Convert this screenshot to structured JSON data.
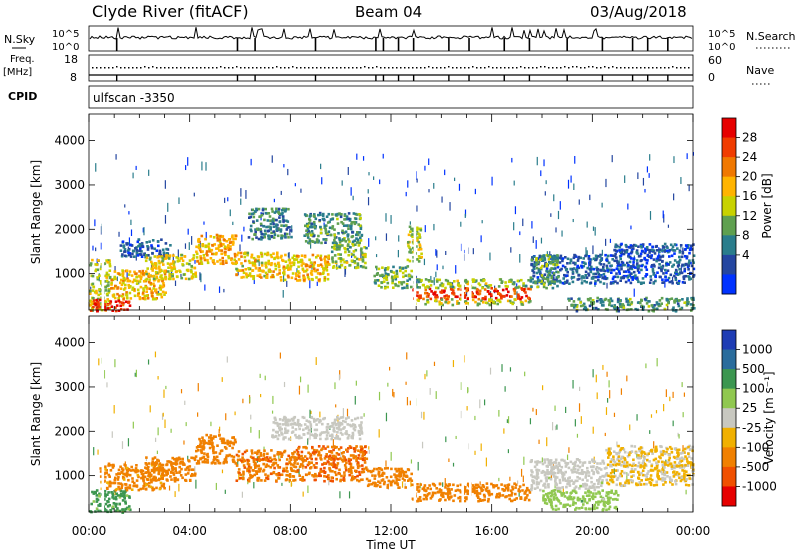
{
  "header": {
    "station": "Clyde River (fitACF)",
    "beam": "Beam 04",
    "date": "03/Aug/2018"
  },
  "summary_panels": {
    "noise_left_label": "N.Sky",
    "noise_right_label": "N.Search",
    "noise_ticks_left": [
      "10^5",
      "10^0"
    ],
    "noise_ticks_right": [
      "10^5",
      "10^0"
    ],
    "freq_label_top": "Freq.",
    "freq_label_unit": "[MHz]",
    "freq_ticks": [
      "18",
      "8"
    ],
    "nave_label": "Nave",
    "nave_ticks": [
      "60",
      "0"
    ],
    "cpid_label": "CPID",
    "cpid_value": "ulfscan  -3350"
  },
  "x_axis": {
    "title": "Time UT",
    "ticks": [
      "00:00",
      "04:00",
      "08:00",
      "12:00",
      "16:00",
      "20:00",
      "00:00"
    ]
  },
  "power_colorbar": {
    "label": "Power [dB]",
    "ticks": [
      "28",
      "24",
      "20",
      "16",
      "12",
      "8",
      "4"
    ],
    "colors": [
      "#e60000",
      "#f03c00",
      "#f07800",
      "#ffb400",
      "#c8d200",
      "#5fa050",
      "#2a7d8c",
      "#2446a0",
      "#0032ff"
    ]
  },
  "velocity_colorbar": {
    "label": "Velocity [m s⁻¹]",
    "ticks": [
      "1000",
      "500",
      "100",
      "25",
      "-25",
      "-100",
      "-500",
      "-1000"
    ],
    "colors": [
      "#1e3cb4",
      "#2a6c9c",
      "#3c9650",
      "#90c850",
      "#c8c8c0",
      "#f0b000",
      "#f08000",
      "#f05000",
      "#e60000"
    ]
  },
  "chart_data": [
    {
      "type": "heatmap",
      "title": "",
      "xlabel": "Time UT",
      "ylabel": "Slant Range [km]",
      "xlim": [
        0,
        24
      ],
      "ylim": [
        180,
        4600
      ],
      "yticks": [
        1000,
        2000,
        3000,
        4000
      ],
      "colorbar": {
        "label": "Power [dB]",
        "range": [
          0,
          30
        ],
        "ticks": [
          4,
          8,
          12,
          16,
          20,
          24,
          28
        ]
      },
      "blocks": [
        {
          "t0": 0.0,
          "t1": 0.8,
          "r0": 180,
          "r1": 1350,
          "value": 14
        },
        {
          "t0": 0.0,
          "t1": 1.6,
          "r0": 180,
          "r1": 450,
          "value": 27
        },
        {
          "t0": 0.8,
          "t1": 3.0,
          "r0": 450,
          "r1": 1100,
          "value": 18
        },
        {
          "t0": 1.2,
          "t1": 3.2,
          "r0": 1400,
          "r1": 1800,
          "value": 6
        },
        {
          "t0": 2.2,
          "t1": 4.2,
          "r0": 900,
          "r1": 1450,
          "value": 16
        },
        {
          "t0": 4.2,
          "t1": 5.8,
          "r0": 1250,
          "r1": 1900,
          "value": 19
        },
        {
          "t0": 5.8,
          "t1": 7.5,
          "r0": 900,
          "r1": 1500,
          "value": 17
        },
        {
          "t0": 6.3,
          "t1": 8.0,
          "r0": 1800,
          "r1": 2500,
          "value": 9
        },
        {
          "t0": 7.5,
          "t1": 9.5,
          "r0": 850,
          "r1": 1450,
          "value": 18
        },
        {
          "t0": 8.5,
          "t1": 10.8,
          "r0": 1700,
          "r1": 2400,
          "value": 10
        },
        {
          "t0": 9.6,
          "t1": 11.0,
          "r0": 1150,
          "r1": 1700,
          "value": 13
        },
        {
          "t0": 11.3,
          "t1": 12.8,
          "r0": 700,
          "r1": 1200,
          "value": 12
        },
        {
          "t0": 12.6,
          "t1": 13.2,
          "r0": 1300,
          "r1": 2100,
          "value": 14
        },
        {
          "t0": 12.8,
          "t1": 17.5,
          "r0": 450,
          "r1": 700,
          "value": 25
        },
        {
          "t0": 12.8,
          "t1": 17.5,
          "r0": 700,
          "r1": 900,
          "value": 13
        },
        {
          "t0": 12.8,
          "t1": 17.5,
          "r0": 320,
          "r1": 450,
          "value": 15
        },
        {
          "t0": 17.5,
          "t1": 20.8,
          "r0": 800,
          "r1": 1450,
          "value": 6
        },
        {
          "t0": 17.5,
          "t1": 18.6,
          "r0": 700,
          "r1": 1450,
          "value": 11
        },
        {
          "t0": 20.8,
          "t1": 24.0,
          "r0": 800,
          "r1": 1700,
          "value": 5
        },
        {
          "t0": 19.0,
          "t1": 24.0,
          "r0": 180,
          "r1": 480,
          "value": 10
        }
      ]
    },
    {
      "type": "heatmap",
      "title": "",
      "xlabel": "Time UT",
      "ylabel": "Slant Range [km]",
      "xlim": [
        0,
        24
      ],
      "ylim": [
        180,
        4600
      ],
      "yticks": [
        1000,
        2000,
        3000,
        4000
      ],
      "colorbar": {
        "label": "Velocity [m s⁻¹]",
        "ticks": [
          1000,
          500,
          100,
          25,
          -25,
          -100,
          -500,
          -1000
        ]
      },
      "blocks": [
        {
          "t0": 0.0,
          "t1": 1.6,
          "r0": 180,
          "r1": 700,
          "value": 150
        },
        {
          "t0": 0.4,
          "t1": 3.0,
          "r0": 700,
          "r1": 1300,
          "value": -150
        },
        {
          "t0": 2.2,
          "t1": 4.2,
          "r0": 900,
          "r1": 1450,
          "value": -250
        },
        {
          "t0": 4.2,
          "t1": 5.8,
          "r0": 1300,
          "r1": 1950,
          "value": -300
        },
        {
          "t0": 5.8,
          "t1": 8.2,
          "r0": 900,
          "r1": 1600,
          "value": -400
        },
        {
          "t0": 7.2,
          "t1": 10.8,
          "r0": 1850,
          "r1": 2350,
          "value": 0
        },
        {
          "t0": 8.2,
          "t1": 11.0,
          "r0": 900,
          "r1": 1700,
          "value": -450
        },
        {
          "t0": 11.0,
          "t1": 12.8,
          "r0": 750,
          "r1": 1200,
          "value": -200
        },
        {
          "t0": 12.8,
          "t1": 17.5,
          "r0": 450,
          "r1": 850,
          "value": -200
        },
        {
          "t0": 17.5,
          "t1": 20.5,
          "r0": 700,
          "r1": 1400,
          "value": 5
        },
        {
          "t0": 18.0,
          "t1": 21.0,
          "r0": 250,
          "r1": 700,
          "value": 60
        },
        {
          "t0": 20.5,
          "t1": 24.0,
          "r0": 800,
          "r1": 1700,
          "value": -30
        }
      ]
    }
  ]
}
